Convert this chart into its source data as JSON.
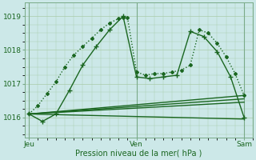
{
  "background_color": "#cce8e8",
  "grid_color": "#aaccaa",
  "line_color": "#1a6620",
  "xlabel": "Pression niveau de la mer( hPa )",
  "xtick_labels": [
    "Jeu",
    "Ven",
    "Sam"
  ],
  "xtick_positions": [
    0,
    24,
    48
  ],
  "ytick_values": [
    1016,
    1017,
    1018,
    1019
  ],
  "ylim": [
    1015.4,
    1019.4
  ],
  "xlim": [
    -1,
    50
  ],
  "lines": [
    {
      "x": [
        0,
        2,
        4,
        6,
        8,
        10,
        12,
        14,
        16,
        18,
        20,
        21,
        22,
        24,
        26,
        28,
        30,
        32,
        34,
        36,
        38,
        40,
        42,
        44,
        46,
        48
      ],
      "y": [
        1016.1,
        1016.35,
        1016.7,
        1017.05,
        1017.5,
        1017.85,
        1018.1,
        1018.35,
        1018.6,
        1018.8,
        1018.93,
        1018.97,
        1018.95,
        1017.35,
        1017.25,
        1017.3,
        1017.3,
        1017.35,
        1017.4,
        1017.55,
        1018.6,
        1018.5,
        1018.2,
        1017.8,
        1017.3,
        1016.65
      ],
      "marker": "D",
      "markersize": 2.0,
      "linewidth": 1.0,
      "linestyle": ":"
    },
    {
      "x": [
        0,
        3,
        6,
        9,
        12,
        15,
        18,
        21,
        24,
        27,
        30,
        33,
        36,
        39,
        42,
        45,
        48
      ],
      "y": [
        1016.1,
        1015.88,
        1016.1,
        1016.8,
        1017.55,
        1018.1,
        1018.6,
        1019.0,
        1017.2,
        1017.15,
        1017.2,
        1017.25,
        1018.55,
        1018.4,
        1017.95,
        1017.2,
        1016.0
      ],
      "marker": "+",
      "markersize": 4.0,
      "linewidth": 1.0,
      "linestyle": "-"
    },
    {
      "x": [
        0,
        48
      ],
      "y": [
        1016.1,
        1016.65
      ],
      "marker": "None",
      "markersize": 0,
      "linewidth": 1.0,
      "linestyle": "-"
    },
    {
      "x": [
        0,
        48
      ],
      "y": [
        1016.1,
        1016.55
      ],
      "marker": "None",
      "markersize": 0,
      "linewidth": 1.0,
      "linestyle": "-"
    },
    {
      "x": [
        0,
        48
      ],
      "y": [
        1016.1,
        1016.45
      ],
      "marker": "None",
      "markersize": 0,
      "linewidth": 1.0,
      "linestyle": "-"
    },
    {
      "x": [
        0,
        48
      ],
      "y": [
        1016.1,
        1015.95
      ],
      "marker": "None",
      "markersize": 0,
      "linewidth": 1.0,
      "linestyle": "-"
    }
  ]
}
